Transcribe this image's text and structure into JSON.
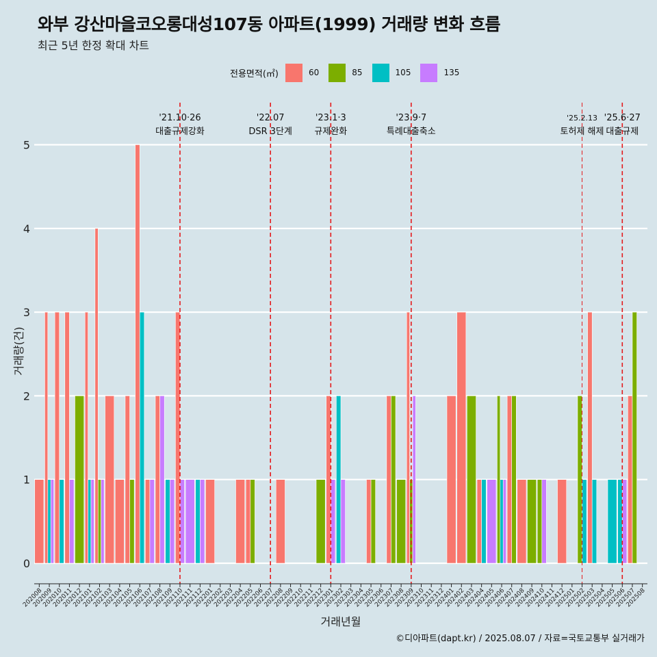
{
  "header": {
    "title": "와부 강산마을코오롱대성107동 아파트(1999) 거래량 변화 흐름",
    "subtitle": "최근 5년 한정 확대 차트"
  },
  "legend": {
    "title": "전용면적(㎡)",
    "items": [
      {
        "label": "60",
        "color": "#F8766D"
      },
      {
        "label": "85",
        "color": "#7CAE00"
      },
      {
        "label": "105",
        "color": "#00BFC4"
      },
      {
        "label": "135",
        "color": "#C77CFF"
      }
    ]
  },
  "caption": "©디아파트(dapt.kr) / 2025.08.07 / 자료=국토교통부 실거래가",
  "chart_data": {
    "type": "bar",
    "xlabel": "거래년월",
    "ylabel": "거래량(건)",
    "ylim": [
      -0.25,
      5.4
    ],
    "yticks": [
      0,
      1,
      2,
      3,
      4,
      5
    ],
    "grid": true,
    "legend_position": "top",
    "categories": [
      "202008",
      "202009",
      "202010",
      "202011",
      "202012",
      "202101",
      "202102",
      "202103",
      "202104",
      "202105",
      "202106",
      "202107",
      "202108",
      "202109",
      "202110",
      "202111",
      "202112",
      "202201",
      "202202",
      "202203",
      "202204",
      "202205",
      "202206",
      "202207",
      "202208",
      "202209",
      "202210",
      "202211",
      "202212",
      "202301",
      "202302",
      "202303",
      "202304",
      "202305",
      "202306",
      "202307",
      "202308",
      "202309",
      "202310",
      "202311",
      "202312",
      "202401",
      "202402",
      "202403",
      "202404",
      "202405",
      "202406",
      "202407",
      "202408",
      "202409",
      "202410",
      "202411",
      "202412",
      "202501",
      "202502",
      "202503",
      "202504",
      "202505",
      "202506",
      "202507",
      "202508"
    ],
    "series": [
      {
        "name": "60",
        "values": [
          1,
          3,
          3,
          3,
          0,
          3,
          4,
          2,
          1,
          2,
          5,
          1,
          2,
          0,
          3,
          0,
          0,
          1,
          0,
          0,
          1,
          1,
          0,
          0,
          1,
          0,
          0,
          0,
          0,
          2,
          0,
          0,
          0,
          1,
          0,
          2,
          0,
          3,
          0,
          0,
          0,
          2,
          3,
          0,
          1,
          0,
          0,
          2,
          1,
          0,
          0,
          0,
          1,
          0,
          0,
          3,
          0,
          0,
          0,
          2,
          0
        ]
      },
      {
        "name": "85",
        "values": [
          0,
          0,
          0,
          0,
          2,
          0,
          1,
          0,
          0,
          1,
          0,
          0,
          0,
          0,
          0,
          0,
          0,
          0,
          0,
          0,
          0,
          1,
          0,
          0,
          0,
          0,
          0,
          0,
          1,
          0,
          0,
          0,
          0,
          1,
          0,
          2,
          1,
          1,
          0,
          0,
          0,
          0,
          0,
          2,
          0,
          0,
          2,
          2,
          0,
          1,
          1,
          0,
          0,
          0,
          2,
          0,
          0,
          0,
          0,
          3,
          0
        ]
      },
      {
        "name": "105",
        "values": [
          0,
          1,
          1,
          0,
          0,
          1,
          0,
          0,
          0,
          0,
          3,
          0,
          0,
          1,
          0,
          0,
          1,
          0,
          0,
          0,
          0,
          0,
          0,
          0,
          0,
          0,
          0,
          0,
          0,
          0,
          2,
          0,
          0,
          0,
          0,
          0,
          0,
          0,
          0,
          0,
          0,
          0,
          0,
          0,
          1,
          0,
          1,
          0,
          0,
          0,
          0,
          0,
          0,
          0,
          1,
          1,
          0,
          1,
          1,
          0,
          0
        ]
      },
      {
        "name": "135",
        "values": [
          0,
          1,
          0,
          1,
          0,
          1,
          1,
          0,
          0,
          0,
          0,
          1,
          2,
          1,
          1,
          1,
          1,
          0,
          0,
          0,
          0,
          0,
          0,
          0,
          0,
          0,
          0,
          0,
          0,
          1,
          1,
          0,
          0,
          0,
          0,
          0,
          0,
          2,
          0,
          0,
          0,
          0,
          0,
          0,
          0,
          1,
          1,
          0,
          0,
          0,
          1,
          0,
          0,
          0,
          0,
          0,
          0,
          0,
          1,
          0,
          0
        ]
      }
    ],
    "annotations": [
      {
        "x": "202110",
        "line1": "'21.10·26",
        "line2": "대출규제강화"
      },
      {
        "x": "202207",
        "line1": "'22.07",
        "line2": "DSR 3단계"
      },
      {
        "x": "202301",
        "line1": "'23.1·3",
        "line2": "규제완화"
      },
      {
        "x": "202309",
        "line1": "'23.9·7",
        "line2": "특례대출축소"
      },
      {
        "x": "202502",
        "line1": "'25.2.13",
        "line2": "토허제 해제"
      },
      {
        "x": "202506",
        "line1": "'25.6·27",
        "line2": "대출규제"
      }
    ]
  }
}
